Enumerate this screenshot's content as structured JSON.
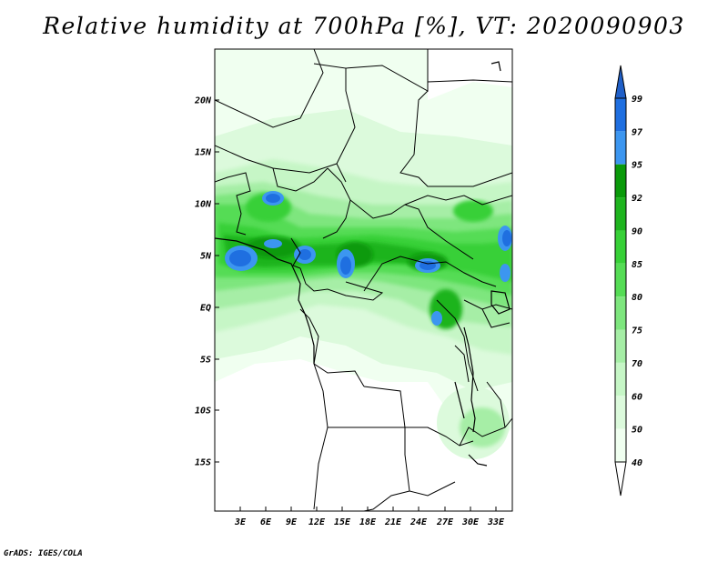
{
  "title": "Relative humidity at 700hPa [%], VT: 2020090903",
  "credit": "GrADS: IGES/COLA",
  "map": {
    "lat_labels": [
      "20N",
      "15N",
      "10N",
      "5N",
      "EQ",
      "5S",
      "10S",
      "15S"
    ],
    "lon_labels": [
      "3E",
      "6E",
      "9E",
      "12E",
      "15E",
      "18E",
      "21E",
      "24E",
      "27E",
      "30E",
      "33E"
    ]
  },
  "colorbar": {
    "levels": [
      "99",
      "97",
      "95",
      "92",
      "90",
      "85",
      "80",
      "75",
      "70",
      "60",
      "50",
      "40"
    ],
    "colors": [
      "#1f5fc8",
      "#1f6fe0",
      "#3c96f0",
      "#0a9a0a",
      "#1eb41e",
      "#37d037",
      "#55dc55",
      "#7ee67e",
      "#a6eea6",
      "#c6f6c6",
      "#dcfadc",
      "#f0fff0",
      "#ffffff"
    ]
  }
}
